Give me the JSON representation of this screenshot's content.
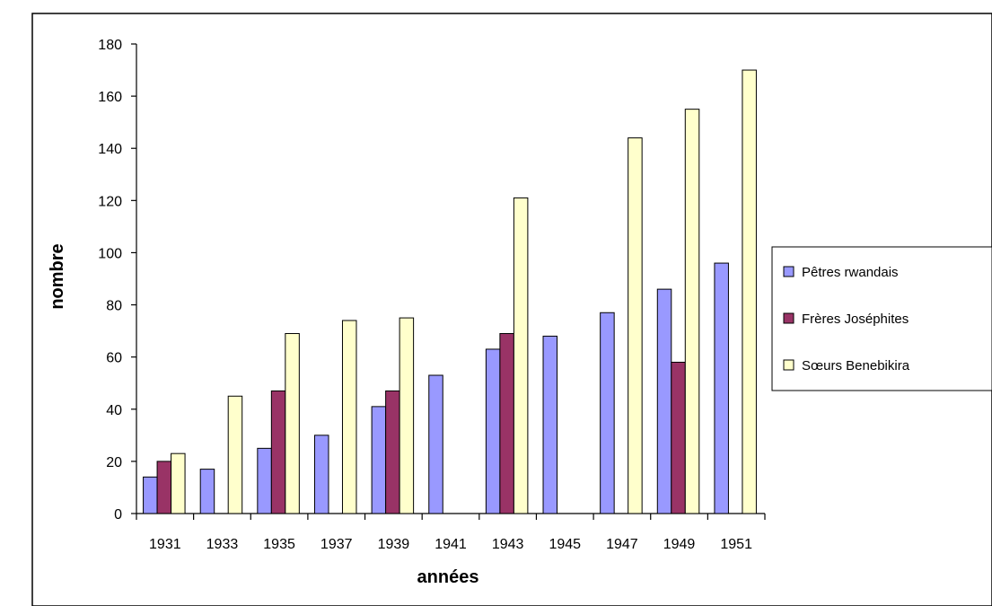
{
  "chart_data": {
    "type": "bar",
    "title": "",
    "xlabel": "années",
    "ylabel": "nombre",
    "ylim": [
      0,
      180
    ],
    "y_ticks": [
      0,
      20,
      40,
      60,
      80,
      100,
      120,
      140,
      160,
      180
    ],
    "grid": false,
    "legend_position": "right",
    "categories": [
      "1931",
      "1933",
      "1935",
      "1937",
      "1939",
      "1941",
      "1943",
      "1945",
      "1947",
      "1949",
      "1951"
    ],
    "series": [
      {
        "name": "Pêtres rwandais",
        "color": "#9999ff",
        "values": [
          14,
          17,
          25,
          30,
          41,
          53,
          63,
          68,
          77,
          86,
          96
        ]
      },
      {
        "name": "Frères Joséphites",
        "color": "#993366",
        "values": [
          20,
          null,
          47,
          null,
          47,
          null,
          69,
          null,
          null,
          58,
          null
        ]
      },
      {
        "name": "Sœurs Benebikira",
        "color": "#ffffcc",
        "values": [
          23,
          45,
          69,
          74,
          75,
          null,
          121,
          null,
          144,
          155,
          170
        ]
      }
    ]
  }
}
